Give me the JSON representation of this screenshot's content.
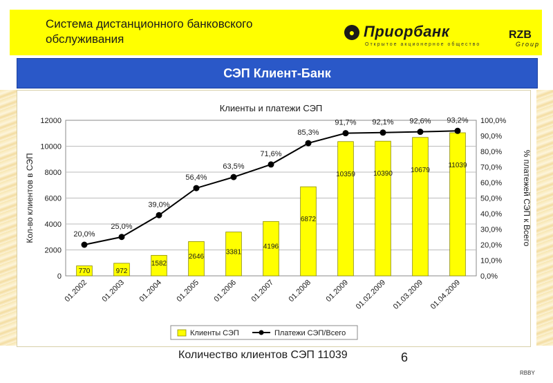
{
  "header": {
    "title": "Система дистанционного банковского обслуживания",
    "logo_text": "Приорбанк",
    "logo_sub": "Открытое акционерное общество",
    "rzb": "RZB",
    "rzb_sub": "Group"
  },
  "banner": {
    "title": "СЭП Клиент-Банк"
  },
  "footer": {
    "text": "Количество клиентов СЭП 11039",
    "page_number": "6",
    "code": "RBBY"
  },
  "colors": {
    "header_bg": "#ffff00",
    "banner_bg": "#2a58c8",
    "bar_fill": "#ffff00",
    "line": "#000000"
  },
  "chart_data": {
    "type": "bar",
    "title": "Клиенты и платежи СЭП",
    "categories": [
      "01.2002",
      "01.2003",
      "01.2004",
      "01.2005",
      "01.2006",
      "01.2007",
      "01.2008",
      "01.2009",
      "01.02.2009",
      "01.03.2009",
      "01.04.2009"
    ],
    "series": [
      {
        "name": "Клиенты СЭП",
        "type": "bar",
        "axis": "left",
        "values": [
          770,
          972,
          1582,
          2646,
          3381,
          4196,
          6872,
          10359,
          10390,
          10679,
          11039
        ],
        "labels": [
          "770",
          "972",
          "1582",
          "2646",
          "3381",
          "4196",
          "6872",
          "10359",
          "10390",
          "10679",
          "11039"
        ]
      },
      {
        "name": "Платежи СЭП/Всего",
        "type": "line",
        "axis": "right",
        "values": [
          20.0,
          25.0,
          39.0,
          56.4,
          63.5,
          71.6,
          85.3,
          91.7,
          92.1,
          92.6,
          93.2
        ],
        "labels": [
          "20,0%",
          "25,0%",
          "39,0%",
          "56,4%",
          "63,5%",
          "71,6%",
          "85,3%",
          "91,7%",
          "92,1%",
          "92,6%",
          "93,2%"
        ]
      }
    ],
    "ylabel": "Кол-во клиентов в СЭП",
    "y2label": "% платежей СЭП к Всего",
    "ylim": [
      0,
      12000
    ],
    "y2lim": [
      0,
      100
    ],
    "yticks": [
      "0",
      "2000",
      "4000",
      "6000",
      "8000",
      "10000",
      "12000"
    ],
    "y2ticks": [
      "0,0%",
      "10,0%",
      "20,0%",
      "30,0%",
      "40,0%",
      "50,0%",
      "60,0%",
      "70,0%",
      "80,0%",
      "90,0%",
      "100,0%"
    ],
    "grid": true,
    "legend": "bottom"
  }
}
